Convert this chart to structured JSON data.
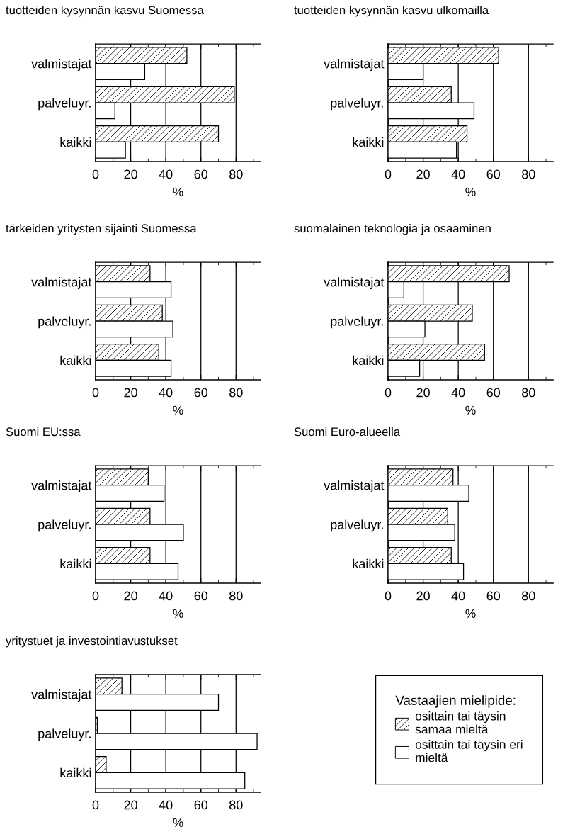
{
  "chart_data": [
    {
      "type": "bar",
      "orientation": "horizontal",
      "title": "tuotteiden kysynnän kasvu Suomessa",
      "xlabel": "%",
      "categories": [
        "valmistajat",
        "palveluyr.",
        "kaikki"
      ],
      "series": [
        {
          "color": "#000000",
          "values": [
            52,
            79,
            70
          ]
        },
        {
          "color": "#ffffff",
          "values": [
            28,
            11,
            17
          ]
        }
      ],
      "xlim": [
        0,
        94
      ],
      "xticks": [
        0,
        20,
        40,
        60,
        80
      ],
      "grid": "x"
    },
    {
      "type": "bar",
      "orientation": "horizontal",
      "title": "tuotteiden kysynnän kasvu ulkomailla",
      "xlabel": "%",
      "categories": [
        "valmistajat",
        "palveluyr.",
        "kaikki"
      ],
      "series": [
        {
          "color": "#000000",
          "values": [
            63,
            36,
            45
          ]
        },
        {
          "color": "#ffffff",
          "values": [
            20,
            49,
            39
          ]
        }
      ],
      "xlim": [
        0,
        94
      ],
      "xticks": [
        0,
        20,
        40,
        60,
        80
      ],
      "grid": "x"
    },
    {
      "type": "bar",
      "orientation": "horizontal",
      "title": "tärkeiden yritysten sijainti Suomessa",
      "xlabel": "%",
      "categories": [
        "valmistajat",
        "palveluyr.",
        "kaikki"
      ],
      "series": [
        {
          "color": "#000000",
          "values": [
            31,
            38,
            36
          ]
        },
        {
          "color": "#ffffff",
          "values": [
            43,
            44,
            43
          ]
        }
      ],
      "xlim": [
        0,
        94
      ],
      "xticks": [
        0,
        20,
        40,
        60,
        80
      ],
      "grid": "x"
    },
    {
      "type": "bar",
      "orientation": "horizontal",
      "title": "suomalainen teknologia ja osaaminen",
      "xlabel": "%",
      "categories": [
        "valmistajat",
        "palveluyr.",
        "kaikki"
      ],
      "series": [
        {
          "color": "#000000",
          "values": [
            69,
            48,
            55
          ]
        },
        {
          "color": "#ffffff",
          "values": [
            9,
            21,
            18
          ]
        }
      ],
      "xlim": [
        0,
        94
      ],
      "xticks": [
        0,
        20,
        40,
        60,
        80
      ],
      "grid": "x"
    },
    {
      "type": "bar",
      "orientation": "horizontal",
      "title": "Suomi EU:ssa",
      "xlabel": "%",
      "categories": [
        "valmistajat",
        "palveluyr.",
        "kaikki"
      ],
      "series": [
        {
          "color": "#000000",
          "values": [
            30,
            31,
            31
          ]
        },
        {
          "color": "#ffffff",
          "values": [
            39,
            50,
            47
          ]
        }
      ],
      "xlim": [
        0,
        94
      ],
      "xticks": [
        0,
        20,
        40,
        60,
        80
      ],
      "grid": "x"
    },
    {
      "type": "bar",
      "orientation": "horizontal",
      "title": "Suomi Euro-alueella",
      "xlabel": "%",
      "categories": [
        "valmistajat",
        "palveluyr.",
        "kaikki"
      ],
      "series": [
        {
          "color": "#000000",
          "values": [
            37,
            34,
            36
          ]
        },
        {
          "color": "#ffffff",
          "values": [
            46,
            38,
            43
          ]
        }
      ],
      "xlim": [
        0,
        94
      ],
      "xticks": [
        0,
        20,
        40,
        60,
        80
      ],
      "grid": "x"
    },
    {
      "type": "bar",
      "orientation": "horizontal",
      "title": "yritystuet ja investointiavustukset",
      "xlabel": "%",
      "categories": [
        "valmistajat",
        "palveluyr.",
        "kaikki"
      ],
      "legend": "right",
      "legend_title": "Vastaajien mielipide:",
      "series": [
        {
          "name": "osittain tai täysin\nsamaa mieltä",
          "color": "#000000",
          "values": [
            15,
            1,
            6
          ]
        },
        {
          "name": "osittain tai täysin eri\nmieltä",
          "color": "#ffffff",
          "values": [
            70,
            92,
            85
          ]
        }
      ],
      "xlim": [
        0,
        94
      ],
      "xticks": [
        0,
        20,
        40,
        60,
        80
      ],
      "grid": "x"
    }
  ]
}
